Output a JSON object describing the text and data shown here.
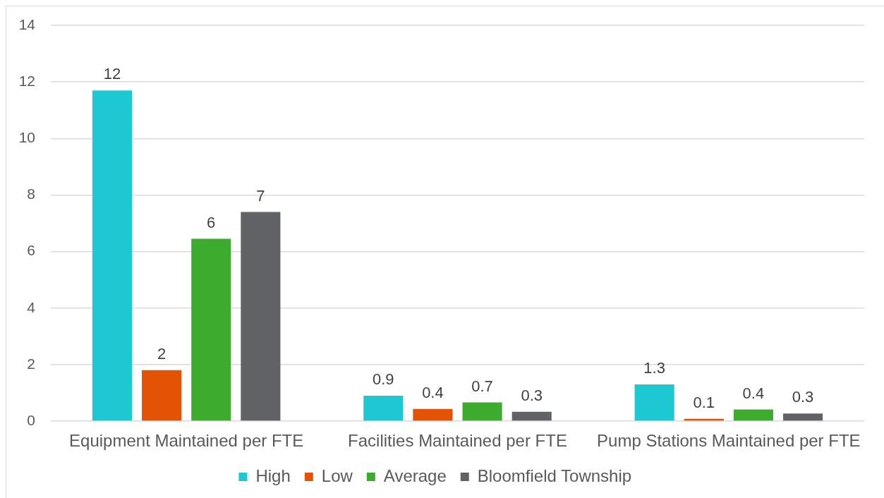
{
  "chart_data": {
    "type": "bar",
    "categories": [
      "Equipment Maintained per FTE",
      "Facilities Maintained per FTE",
      "Pump Stations Maintained per FTE"
    ],
    "series": [
      {
        "name": "High",
        "color": "#1ec8d2",
        "values": [
          11.7,
          0.9,
          1.3
        ],
        "value_labels": [
          "12",
          "0.9",
          "1.3"
        ]
      },
      {
        "name": "Low",
        "color": "#e35205",
        "values": [
          1.8,
          0.43,
          0.08
        ],
        "value_labels": [
          "2",
          "0.4",
          "0.1"
        ]
      },
      {
        "name": "Average",
        "color": "#3dac2e",
        "values": [
          6.45,
          0.66,
          0.41
        ],
        "value_labels": [
          "6",
          "0.7",
          "0.4"
        ]
      },
      {
        "name": "Bloomfield Township",
        "color": "#616265",
        "values": [
          7.4,
          0.33,
          0.27
        ],
        "value_labels": [
          "7",
          "0.3",
          "0.3"
        ]
      }
    ],
    "ylim": [
      0,
      14
    ],
    "yticks": [
      0,
      2,
      4,
      6,
      8,
      10,
      12,
      14
    ],
    "grid": "y",
    "legend": "bottom"
  }
}
